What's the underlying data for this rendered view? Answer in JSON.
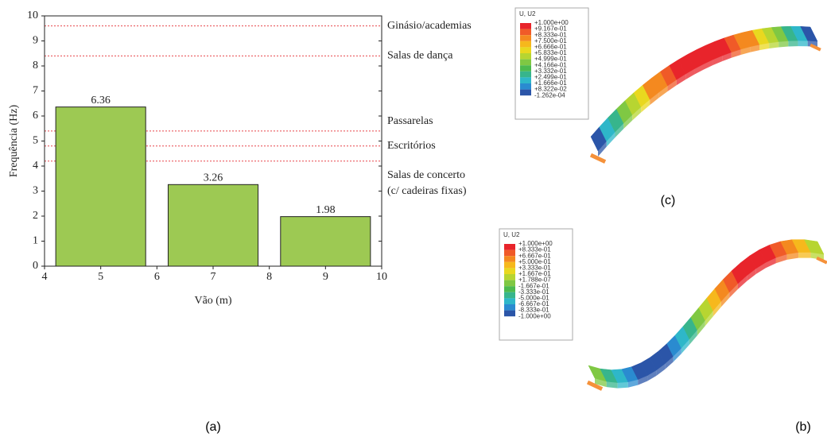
{
  "chart_data": {
    "type": "bar",
    "x": [
      5,
      7,
      9
    ],
    "values": [
      6.36,
      3.26,
      1.98
    ],
    "color": "#9dc953",
    "xlabel": "Vão (m)",
    "ylabel": "Frequência (Hz)",
    "xlim": [
      4,
      10
    ],
    "xticks": [
      4,
      5,
      6,
      7,
      8,
      9,
      10
    ],
    "ylim": [
      0,
      10
    ],
    "yticks": [
      0,
      1,
      2,
      3,
      4,
      5,
      6,
      7,
      8,
      9,
      10
    ],
    "reference_lines": [
      {
        "value": 9.6,
        "label_lines": [
          "Ginásio/academias"
        ]
      },
      {
        "value": 8.4,
        "label_lines": [
          "Salas de dança"
        ]
      },
      {
        "value": 5.4,
        "label_lines": [
          "Passarelas"
        ]
      },
      {
        "value": 4.8,
        "label_lines": [
          "Escritórios"
        ]
      },
      {
        "value": 4.2,
        "label_lines": [
          "Salas de concerto",
          "(c/ cadeiras fixas)"
        ]
      }
    ],
    "reference_color": "#e8454a"
  },
  "panels": {
    "a": "(a)",
    "b": "(b)",
    "c": "(c)"
  },
  "contour_c": {
    "title": "U, U2",
    "labels": [
      "+1.000e+00",
      "+9.167e-01",
      "+8.333e-01",
      "+7.500e-01",
      "+6.666e-01",
      "+5.833e-01",
      "+4.999e-01",
      "+4.166e-01",
      "+3.332e-01",
      "+2.499e-01",
      "+1.666e-01",
      "+8.322e-02",
      "-1.262e-04"
    ]
  },
  "contour_b": {
    "title": "U, U2",
    "labels": [
      "+1.000e+00",
      "+8.333e-01",
      "+6.667e-01",
      "+5.000e-01",
      "+3.333e-01",
      "+1.667e-01",
      "+1.788e-07",
      "-1.667e-01",
      "-3.333e-01",
      "-5.000e-01",
      "-6.667e-01",
      "-8.333e-01",
      "-1.000e+00"
    ]
  }
}
